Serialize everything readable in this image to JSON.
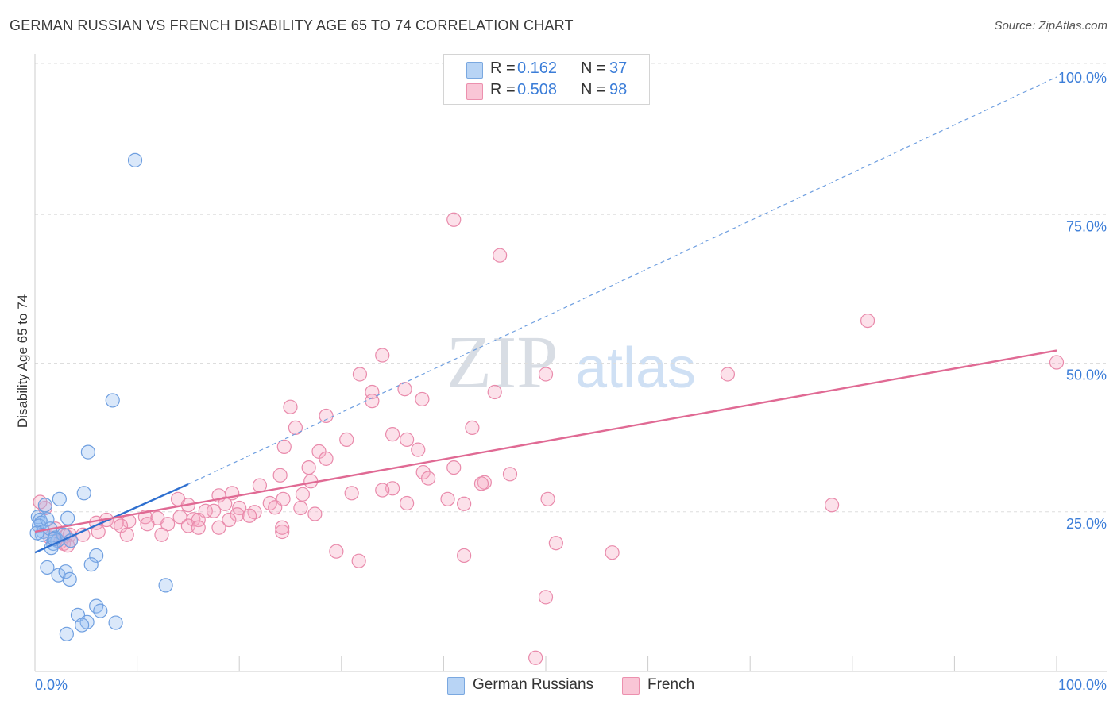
{
  "title": "GERMAN RUSSIAN VS FRENCH DISABILITY AGE 65 TO 74 CORRELATION CHART",
  "source": "Source: ZipAtlas.com",
  "watermark": {
    "zip": "ZIP",
    "atlas": "atlas"
  },
  "legend": {
    "rows": [
      {
        "label": "R =",
        "r_value": "0.162",
        "n_label": "N =",
        "n_value": "37",
        "fill": "#b8d4f5",
        "stroke": "#7aa8e0"
      },
      {
        "label": "R =",
        "r_value": "0.508",
        "n_label": "N =",
        "n_value": "98",
        "fill": "#f9c6d6",
        "stroke": "#ec90ae"
      }
    ]
  },
  "bottom_legend": [
    {
      "label": "German Russians",
      "fill": "#b8d4f5",
      "stroke": "#7aa8e0"
    },
    {
      "label": "French",
      "fill": "#f9c6d6",
      "stroke": "#ec90ae"
    }
  ],
  "chart_data": {
    "type": "scatter",
    "title": "GERMAN RUSSIAN VS FRENCH DISABILITY AGE 65 TO 74 CORRELATION CHART",
    "xlabel": "",
    "ylabel": "Disability Age 65 to 74",
    "xlim": [
      0,
      100
    ],
    "ylim": [
      0,
      100
    ],
    "x_tick_labels": [
      "0.0%",
      "100.0%"
    ],
    "y_tick_labels": [
      "25.0%",
      "50.0%",
      "75.0%",
      "100.0%"
    ],
    "y_ticks": [
      25,
      50,
      75,
      100
    ],
    "grid": true,
    "colors": {
      "blue_fill": "rgba(150,190,240,0.35)",
      "blue_stroke": "#6f9fe0",
      "blue_line": "#2e6fcf",
      "pink_fill": "rgba(245,170,195,0.35)",
      "pink_stroke": "#e98aab",
      "pink_line": "#e06a94",
      "axis_text": "#3b7dd8",
      "grid": "#dddddd"
    },
    "series": [
      {
        "name": "German Russians",
        "R": 0.162,
        "N": 37,
        "trend": {
          "x0": 0,
          "y0": 20.0,
          "x1": 15,
          "y1": 31.5,
          "dash_x1": 100,
          "dash_y1": 100
        },
        "points": [
          [
            9.8,
            86.0
          ],
          [
            7.6,
            45.6
          ],
          [
            5.2,
            36.9
          ],
          [
            4.8,
            30.0
          ],
          [
            2.4,
            29.0
          ],
          [
            1.0,
            28.0
          ],
          [
            0.3,
            26.0
          ],
          [
            0.5,
            25.5
          ],
          [
            0.6,
            25.0
          ],
          [
            0.4,
            24.5
          ],
          [
            0.8,
            23.5
          ],
          [
            0.7,
            23.0
          ],
          [
            1.2,
            25.6
          ],
          [
            1.5,
            24.0
          ],
          [
            2.0,
            22.5
          ],
          [
            2.2,
            22.0
          ],
          [
            1.8,
            21.5
          ],
          [
            1.6,
            20.8
          ],
          [
            2.8,
            23.0
          ],
          [
            3.2,
            25.8
          ],
          [
            3.5,
            22.0
          ],
          [
            6.0,
            19.5
          ],
          [
            5.5,
            18.0
          ],
          [
            1.2,
            17.5
          ],
          [
            2.3,
            16.2
          ],
          [
            3.0,
            16.8
          ],
          [
            3.4,
            15.5
          ],
          [
            12.8,
            14.5
          ],
          [
            6.0,
            11.0
          ],
          [
            6.4,
            10.2
          ],
          [
            4.2,
            9.5
          ],
          [
            7.9,
            8.2
          ],
          [
            5.1,
            8.3
          ],
          [
            4.6,
            7.8
          ],
          [
            3.1,
            6.3
          ],
          [
            0.2,
            23.3
          ],
          [
            1.9,
            22.3
          ]
        ]
      },
      {
        "name": "French",
        "R": 0.508,
        "N": 98,
        "trend": {
          "x0": 0,
          "y0": 23.5,
          "x1": 100,
          "y1": 54.0
        },
        "points": [
          [
            41.0,
            76.0
          ],
          [
            45.5,
            70.0
          ],
          [
            81.5,
            59.0
          ],
          [
            100.0,
            52.0
          ],
          [
            34.0,
            53.2
          ],
          [
            31.8,
            50.0
          ],
          [
            50.0,
            50.0
          ],
          [
            67.8,
            50.0
          ],
          [
            33.0,
            47.0
          ],
          [
            36.2,
            47.5
          ],
          [
            45.0,
            47.0
          ],
          [
            33.0,
            45.5
          ],
          [
            37.9,
            45.8
          ],
          [
            25.0,
            44.5
          ],
          [
            28.5,
            43.0
          ],
          [
            25.5,
            41.0
          ],
          [
            42.8,
            41.0
          ],
          [
            35.0,
            39.9
          ],
          [
            30.5,
            39.0
          ],
          [
            36.4,
            39.0
          ],
          [
            24.4,
            37.8
          ],
          [
            27.8,
            37.0
          ],
          [
            37.5,
            37.3
          ],
          [
            28.5,
            35.8
          ],
          [
            26.8,
            34.3
          ],
          [
            41.0,
            34.3
          ],
          [
            24.0,
            33.0
          ],
          [
            38.0,
            33.5
          ],
          [
            46.5,
            33.2
          ],
          [
            38.5,
            32.5
          ],
          [
            27.0,
            32.0
          ],
          [
            44.0,
            31.8
          ],
          [
            43.7,
            31.6
          ],
          [
            22.0,
            31.3
          ],
          [
            35.0,
            30.8
          ],
          [
            19.3,
            30.0
          ],
          [
            31.0,
            30.0
          ],
          [
            34.0,
            30.5
          ],
          [
            26.2,
            29.8
          ],
          [
            18.0,
            29.6
          ],
          [
            24.3,
            29.0
          ],
          [
            40.4,
            29.0
          ],
          [
            50.2,
            29.0
          ],
          [
            23.0,
            28.3
          ],
          [
            36.4,
            28.3
          ],
          [
            18.6,
            28.2
          ],
          [
            14.0,
            29.0
          ],
          [
            15.0,
            28.0
          ],
          [
            42.0,
            28.2
          ],
          [
            78.0,
            28.0
          ],
          [
            23.5,
            27.6
          ],
          [
            26.0,
            27.5
          ],
          [
            20.0,
            27.5
          ],
          [
            17.5,
            27.0
          ],
          [
            21.5,
            26.8
          ],
          [
            16.7,
            27.0
          ],
          [
            27.4,
            26.5
          ],
          [
            19.8,
            26.4
          ],
          [
            21.0,
            26.2
          ],
          [
            14.2,
            26.0
          ],
          [
            10.8,
            26.0
          ],
          [
            12.0,
            25.8
          ],
          [
            15.5,
            25.6
          ],
          [
            19.0,
            25.5
          ],
          [
            16.0,
            25.5
          ],
          [
            7.0,
            25.5
          ],
          [
            8.0,
            25.0
          ],
          [
            9.2,
            25.3
          ],
          [
            6.0,
            25.0
          ],
          [
            8.4,
            24.5
          ],
          [
            11.0,
            24.8
          ],
          [
            13.0,
            24.8
          ],
          [
            15.0,
            24.5
          ],
          [
            16.0,
            24.2
          ],
          [
            18.0,
            24.2
          ],
          [
            6.2,
            23.5
          ],
          [
            4.7,
            23.0
          ],
          [
            3.4,
            23.0
          ],
          [
            9.0,
            23.0
          ],
          [
            12.4,
            23.0
          ],
          [
            3.5,
            22.0
          ],
          [
            1.5,
            22.5
          ],
          [
            2.5,
            21.8
          ],
          [
            1.0,
            27.5
          ],
          [
            0.5,
            28.5
          ],
          [
            2.0,
            24.0
          ],
          [
            3.0,
            22.8
          ],
          [
            2.8,
            21.5
          ],
          [
            24.2,
            23.5
          ],
          [
            51.0,
            21.6
          ],
          [
            29.5,
            20.2
          ],
          [
            42.0,
            19.5
          ],
          [
            56.5,
            20.0
          ],
          [
            31.7,
            18.6
          ],
          [
            50.0,
            12.5
          ],
          [
            49.0,
            2.3
          ],
          [
            24.2,
            24.2
          ],
          [
            3.2,
            21.2
          ]
        ]
      }
    ]
  }
}
